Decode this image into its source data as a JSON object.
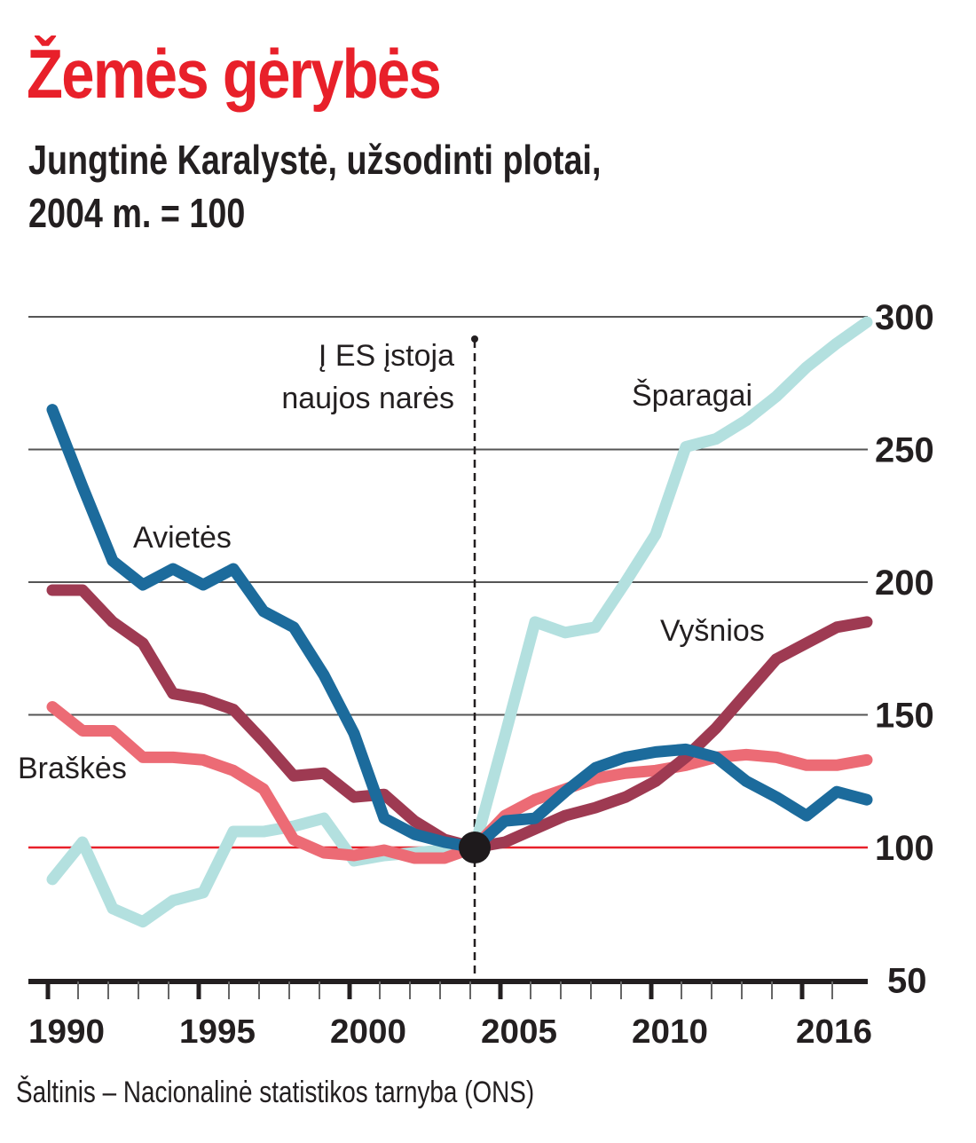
{
  "title": "Žemės gėrybės",
  "subtitle_line1": "Jungtinė Karalystė, užsodinti plotai,",
  "subtitle_line2": "2004 m. = 100",
  "source": "Šaltinis – Nacionalinė statistikos tarnyba (ONS)",
  "chart_data": {
    "type": "line",
    "title": "Žemės gėrybės",
    "subtitle": "Jungtinė Karalystė, užsodinti plotai, 2004 m. = 100",
    "xlabel": "",
    "ylabel": "",
    "ylim": [
      50,
      300
    ],
    "xlim": [
      1990,
      2017
    ],
    "grid": true,
    "yticks": [
      "300",
      "250",
      "200",
      "150",
      "100",
      "50"
    ],
    "ytick_values": [
      300,
      250,
      200,
      150,
      100,
      50
    ],
    "xticks": [
      "1990",
      "1995",
      "2000",
      "2005",
      "2010",
      "2016"
    ],
    "xtick_values": [
      1990,
      1995,
      2000,
      2005,
      2010,
      2016
    ],
    "annotation": {
      "year": 2004,
      "value": 100,
      "line1": "Į ES įstoja",
      "line2": "naujos narės"
    },
    "x": [
      1990,
      1991,
      1992,
      1993,
      1994,
      1995,
      1996,
      1997,
      1998,
      1999,
      2000,
      2001,
      2002,
      2003,
      2004,
      2005,
      2006,
      2007,
      2008,
      2009,
      2010,
      2011,
      2012,
      2013,
      2014,
      2015,
      2016,
      2017
    ],
    "series": [
      {
        "name": "Šparagai",
        "color": "#b3e0df",
        "values": [
          88,
          102,
          77,
          72,
          80,
          83,
          106,
          106,
          108,
          111,
          95,
          97,
          98,
          99,
          100,
          142,
          185,
          181,
          183,
          200,
          218,
          251,
          254,
          261,
          270,
          281,
          290,
          298
        ]
      },
      {
        "name": "Braškės",
        "color": "#ec6b75",
        "values": [
          153,
          144,
          144,
          134,
          134,
          133,
          129,
          122,
          103,
          98,
          97,
          99,
          96,
          96,
          100,
          112,
          118,
          122,
          126,
          128,
          129,
          131,
          134,
          135,
          134,
          131,
          131,
          133
        ]
      },
      {
        "name": "Vyšnios",
        "color": "#9e3a52",
        "values": [
          197,
          197,
          185,
          177,
          158,
          156,
          152,
          140,
          127,
          128,
          119,
          120,
          110,
          103,
          100,
          102,
          107,
          112,
          115,
          119,
          125,
          134,
          145,
          158,
          171,
          177,
          183,
          185
        ]
      },
      {
        "name": "Avietės",
        "color": "#1c6b9c",
        "values": [
          265,
          236,
          208,
          199,
          205,
          199,
          205,
          189,
          183,
          165,
          143,
          111,
          105,
          102,
          100,
          110,
          111,
          121,
          130,
          134,
          136,
          137,
          134,
          125,
          119,
          112,
          121,
          118
        ]
      }
    ],
    "reference_line": {
      "value": 100,
      "color": "#e8202a"
    }
  }
}
